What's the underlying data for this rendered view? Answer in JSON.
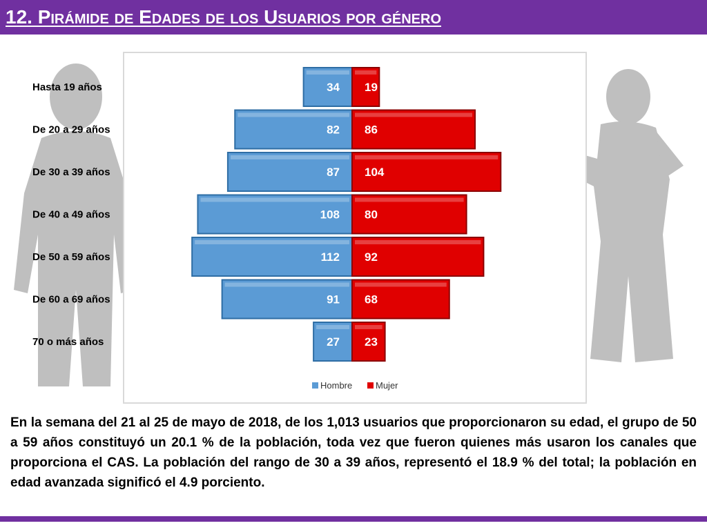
{
  "header": {
    "title": "12. Pirámide de Edades de los Usuarios por género"
  },
  "colors": {
    "header_bg": "#7030a0",
    "hombre": "#5b9bd5",
    "mujer": "#e00000",
    "silhouette": "#bfbfbf"
  },
  "chart_data": {
    "type": "bar",
    "orientation": "horizontal",
    "layout": "population-pyramid",
    "categories": [
      "Hasta 19 años",
      "De 20 a 29 años",
      "De 30 a 39 años",
      "De 40 a 49 años",
      "De 50 a 59 años",
      "De 60 a 69 años",
      "70 o más años"
    ],
    "series": [
      {
        "name": "Hombre",
        "side": "left",
        "color": "#5b9bd5",
        "values": [
          34,
          82,
          87,
          108,
          112,
          91,
          27
        ]
      },
      {
        "name": "Mujer",
        "side": "right",
        "color": "#e00000",
        "values": [
          19,
          86,
          104,
          80,
          92,
          68,
          23
        ]
      }
    ],
    "data_labels": true,
    "grid": false,
    "legend_position": "bottom"
  },
  "description": "En la semana del 21 al 25 de mayo de 2018, de los 1,013 usuarios que proporcionaron su edad, el grupo de 50 a 59 años constituyó un 20.1 % de la población, toda vez que fueron quienes más usaron los canales que proporciona el CAS. La población del rango de 30 a 39 años, representó el 18.9 % del total; la población en edad avanzada significó el 4.9 porciento."
}
